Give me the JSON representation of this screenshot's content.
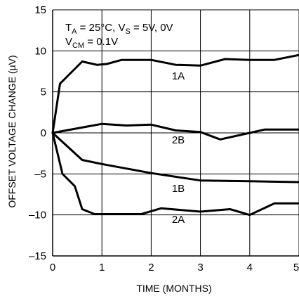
{
  "chart_data": {
    "type": "line",
    "xlabel": "TIME (MONTHS)",
    "ylabel": "OFFSET VOLTAGE CHANGE (µV)",
    "xlim": [
      0,
      5
    ],
    "ylim": [
      -15,
      15
    ],
    "x_ticks": [
      "0",
      "1",
      "2",
      "3",
      "4",
      "5"
    ],
    "y_ticks": [
      "15",
      "10",
      "5",
      "0",
      "–5",
      "–10",
      "–15"
    ],
    "grid": true,
    "annotation": {
      "line1_prefix": "T",
      "line1_sub1": "A",
      "line1_mid": " = 25°C, V",
      "line1_sub2": "S",
      "line1_suffix": " = 5V, 0V",
      "line2_prefix": "V",
      "line2_sub": "CM",
      "line2_suffix": " = 0.1V"
    },
    "series": [
      {
        "name": "1A",
        "x": [
          0,
          0.15,
          0.6,
          0.9,
          1.1,
          1.4,
          2.0,
          2.5,
          3.0,
          3.5,
          4.0,
          4.5,
          5.0
        ],
        "y": [
          0,
          6,
          8.7,
          8.3,
          8.4,
          8.9,
          8.9,
          8.3,
          8.2,
          9.0,
          8.9,
          8.9,
          9.5
        ]
      },
      {
        "name": "2B",
        "x": [
          0,
          1.0,
          1.5,
          2.0,
          2.5,
          3.0,
          3.4,
          4.0,
          4.3,
          5.0
        ],
        "y": [
          0,
          1.1,
          0.9,
          1.0,
          0.3,
          0.1,
          -0.8,
          0.0,
          0.4,
          0.4
        ]
      },
      {
        "name": "1B",
        "x": [
          0,
          0.6,
          1.0,
          2.0,
          3.0,
          4.0,
          5.0
        ],
        "y": [
          0,
          -3.3,
          -3.8,
          -4.9,
          -5.8,
          -5.9,
          -6.0
        ]
      },
      {
        "name": "2A",
        "x": [
          0,
          0.2,
          0.45,
          0.6,
          0.85,
          1.0,
          1.8,
          2.2,
          3.0,
          3.6,
          4.0,
          4.5,
          5.0
        ],
        "y": [
          0,
          -5,
          -6.5,
          -9.3,
          -9.9,
          -9.9,
          -9.9,
          -9.2,
          -9.6,
          -9.3,
          -10.0,
          -8.6,
          -8.6
        ]
      }
    ]
  }
}
